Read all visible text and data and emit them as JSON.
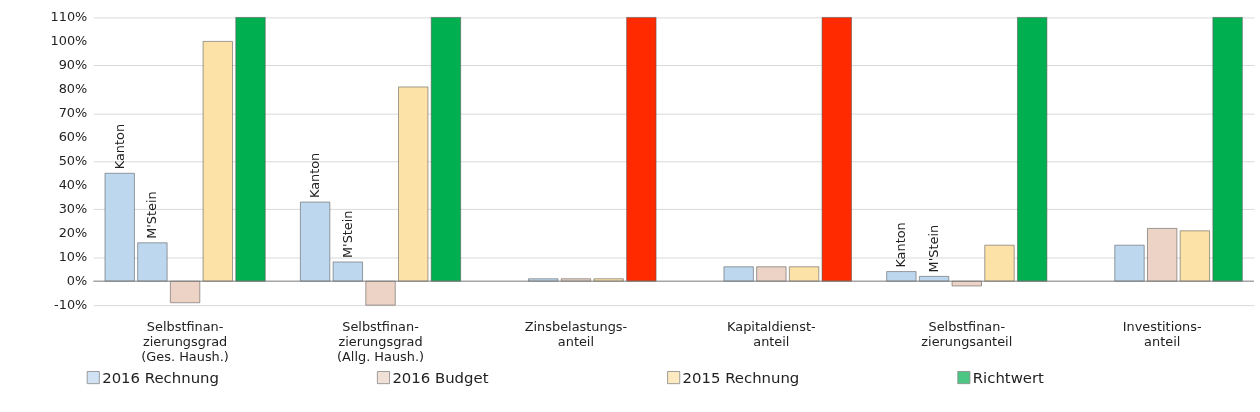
{
  "chart_data": {
    "type": "bar",
    "categories": [
      "Selbstfinan-\nzierungsgrad\n(Ges. Haush.)",
      "Selbstfinan-\nzierungsgrad\n(Allg. Haush.)",
      "Zinsbelastungs-\nanteil",
      "Kapitaldienst-\nanteil",
      "Selbstfinan-\nzierungsanteil",
      "Investitions-\nanteil"
    ],
    "series": [
      {
        "name": "2016 Rechnung",
        "color": "#bdd7ee",
        "values": [
          45,
          33,
          null,
          null,
          4,
          null
        ],
        "value_labels": [
          "Kanton",
          "Kanton",
          null,
          null,
          "Kanton",
          null
        ]
      },
      {
        "color": "#bdd7ee",
        "values": [
          16,
          8,
          1,
          6,
          2,
          15
        ],
        "value_labels": [
          "M'Stein",
          "M'Stein",
          null,
          null,
          "M'Stein",
          null
        ]
      },
      {
        "name": "2016 Budget",
        "color": "#ecd3c5",
        "values": [
          -9,
          -10,
          1,
          6,
          -2,
          22
        ]
      },
      {
        "name": "2015 Rechnung",
        "color": "#fde2a8",
        "values": [
          100,
          81,
          1,
          6,
          15,
          21
        ]
      },
      {
        "name": "Richtwert",
        "color": "#00b050",
        "values": [
          110,
          110,
          110,
          110,
          110,
          110
        ],
        "colors": [
          "#00b050",
          "#00b050",
          "#ff2a00",
          "#ff2a00",
          "#00b050",
          "#00b050"
        ]
      }
    ],
    "ylim": [
      -10,
      110
    ],
    "yticks": [
      {
        "value": -10,
        "label": "-10%"
      },
      {
        "value": 0,
        "label": "0%"
      },
      {
        "value": 10,
        "label": "10%"
      },
      {
        "value": 20,
        "label": "20%"
      },
      {
        "value": 30,
        "label": "30%"
      },
      {
        "value": 40,
        "label": "40%"
      },
      {
        "value": 50,
        "label": "50%"
      },
      {
        "value": 60,
        "label": "60%"
      },
      {
        "value": 70,
        "label": "70%"
      },
      {
        "value": 80,
        "label": "80%"
      },
      {
        "value": 90,
        "label": "90%"
      },
      {
        "value": 100,
        "label": "100%"
      },
      {
        "value": 110,
        "label": "110%"
      }
    ],
    "grid": "y",
    "legend": "bottom"
  }
}
